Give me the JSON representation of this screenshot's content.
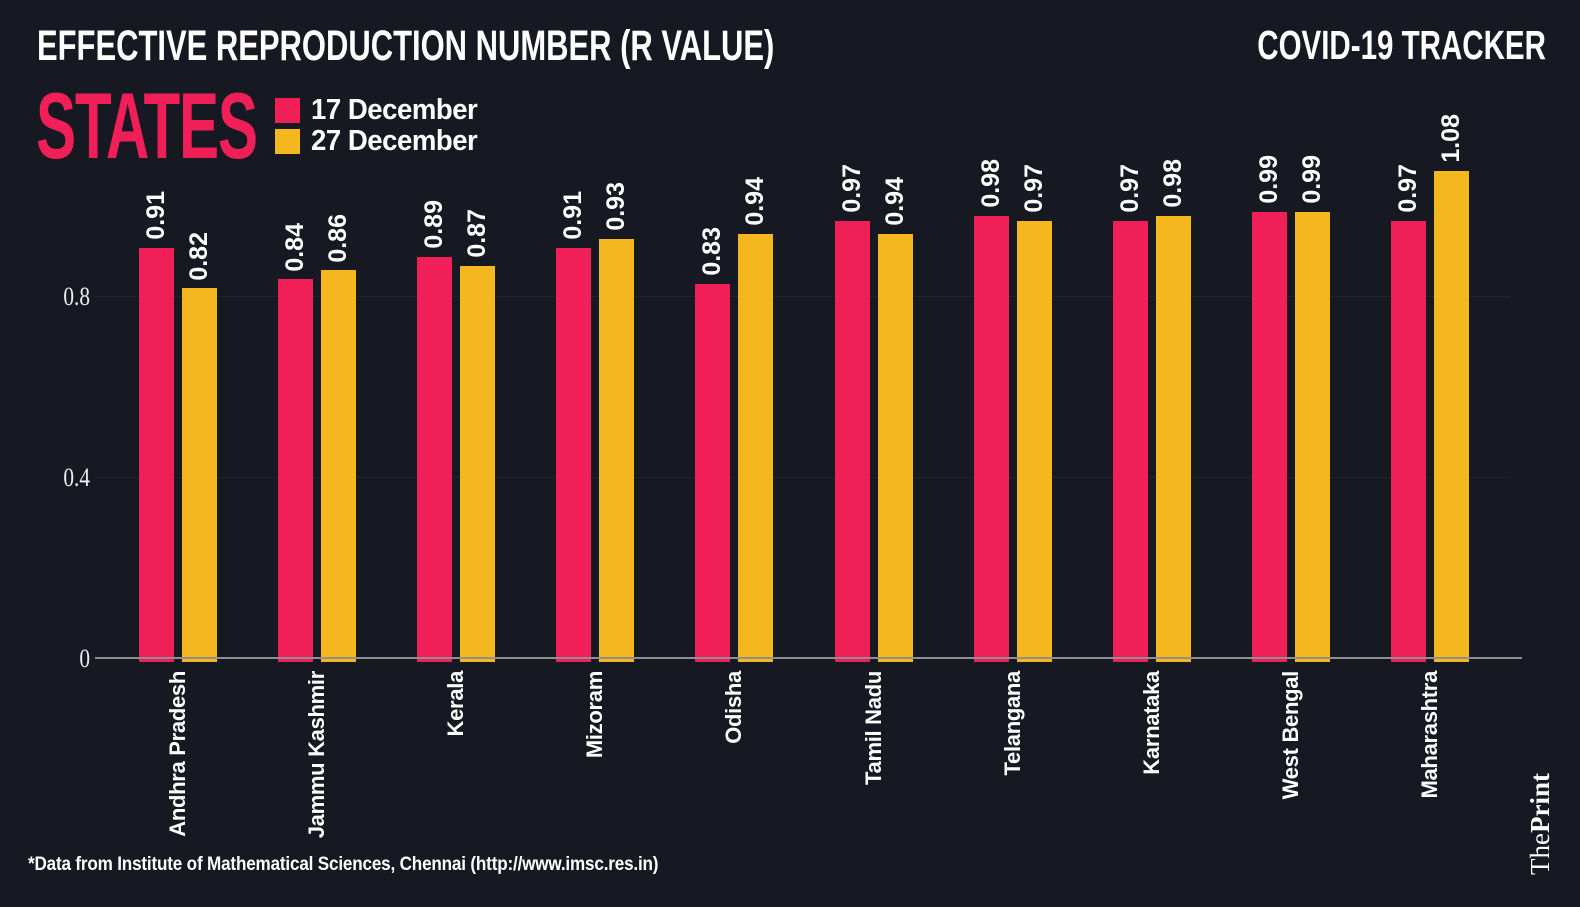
{
  "header": {
    "title": "EFFECTIVE REPRODUCTION NUMBER (R VALUE)",
    "tracker_label": "COVID-19 TRACKER",
    "subtitle": "STATES"
  },
  "legend": {
    "items": [
      {
        "label": "17 December",
        "color": "#F01F58"
      },
      {
        "label": "27 December",
        "color": "#F4B71D"
      }
    ]
  },
  "chart_data": {
    "type": "bar",
    "title": "EFFECTIVE REPRODUCTION NUMBER (R VALUE)",
    "subtitle": "STATES",
    "categories": [
      "Andhra Pradesh",
      "Jammu Kashmir",
      "Kerala",
      "Mizoram",
      "Odisha",
      "Tamil Nadu",
      "Telangana",
      "Karnataka",
      "West Bengal",
      "Maharashtra"
    ],
    "series": [
      {
        "name": "17 December",
        "color": "#F01F58",
        "values": [
          0.91,
          0.84,
          0.89,
          0.91,
          0.83,
          0.97,
          0.98,
          0.97,
          0.99,
          0.97
        ]
      },
      {
        "name": "27 December",
        "color": "#F4B71D",
        "values": [
          0.82,
          0.86,
          0.87,
          0.93,
          0.94,
          0.94,
          0.97,
          0.98,
          0.99,
          1.08
        ]
      }
    ],
    "yticks": [
      {
        "label": "0",
        "value": 0
      },
      {
        "label": "0.4",
        "value": 0.4
      },
      {
        "label": "0.8",
        "value": 0.8
      }
    ],
    "ylim": [
      0,
      1.2
    ],
    "grid": "horizontal",
    "legend_position": "top-left",
    "bar_value_labels": true
  },
  "footer": {
    "source_note": "*Data from Institute of Mathematical Sciences, Chennai (http://www.imsc.res.in)",
    "brand": {
      "part1": "The",
      "part2": "Print"
    }
  },
  "colors": {
    "background": "#161822",
    "accent_pink": "#F01F58",
    "accent_yellow": "#F4B71D",
    "axis_line": "#8E8F96",
    "gridline": "#23252E",
    "text": "#FFFFFF"
  }
}
